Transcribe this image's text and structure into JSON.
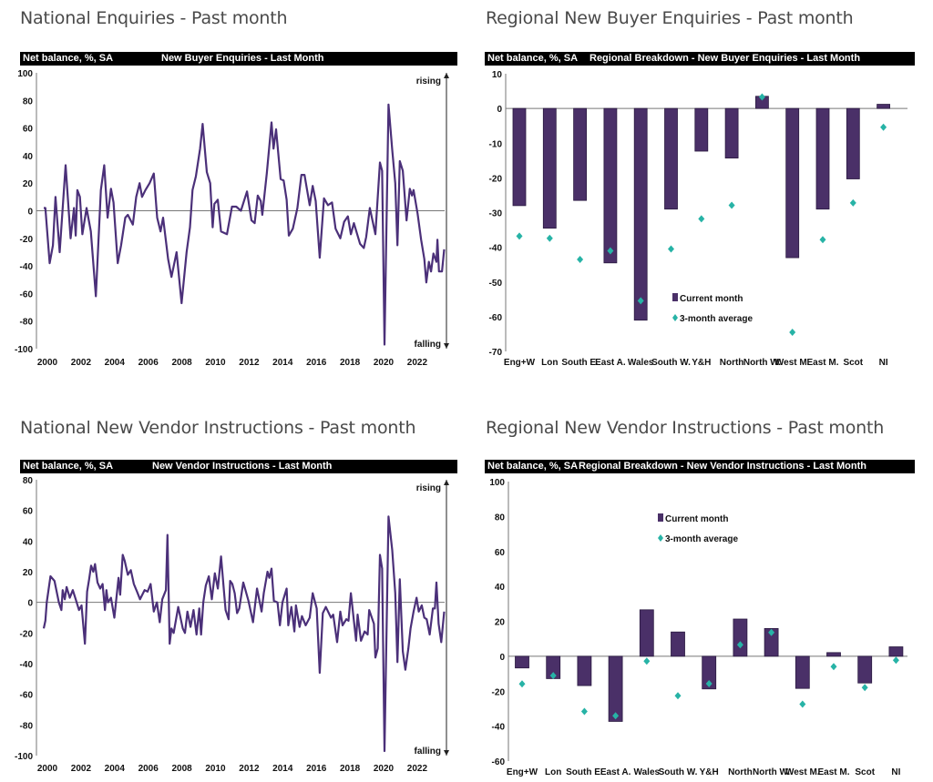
{
  "sections": {
    "national_enquiries": "National Enquiries - Past month",
    "regional_enquiries": "Regional New Buyer Enquiries - Past month",
    "national_vendors": "National New Vendor Instructions - Past month",
    "regional_vendors": "Regional New Vendor Instructions - Past month"
  },
  "colors": {
    "series": "#4b3079",
    "bar": "#4a3068",
    "marker": "#27b3a6",
    "header": "#000000"
  },
  "chart_data": [
    {
      "type": "line",
      "unit_label": "Net balance, %, SA",
      "title": "New Buyer Enquiries - Last Month",
      "ylim": [
        -100,
        100
      ],
      "yticks": [
        100,
        80,
        60,
        40,
        20,
        0,
        -20,
        -40,
        -60,
        -80,
        -100
      ],
      "xticks": [
        "2000",
        "2002",
        "2004",
        "2006",
        "2008",
        "2010",
        "2012",
        "2014",
        "2016",
        "2018",
        "2020",
        "2022"
      ],
      "annotations": {
        "top": "rising",
        "bottom": "falling"
      },
      "points": [
        [
          2000.0,
          2
        ],
        [
          2000.1,
          2
        ],
        [
          2000.35,
          -38
        ],
        [
          2000.55,
          -25
        ],
        [
          2000.7,
          10
        ],
        [
          2000.95,
          -30
        ],
        [
          2001.3,
          33
        ],
        [
          2001.6,
          -20
        ],
        [
          2001.8,
          2
        ],
        [
          2001.9,
          -18
        ],
        [
          2002.0,
          15
        ],
        [
          2002.15,
          10
        ],
        [
          2002.3,
          -17
        ],
        [
          2002.55,
          2
        ],
        [
          2002.8,
          -15
        ],
        [
          2003.1,
          -62
        ],
        [
          2003.4,
          15
        ],
        [
          2003.6,
          33
        ],
        [
          2003.8,
          -5
        ],
        [
          2004.0,
          16
        ],
        [
          2004.15,
          6
        ],
        [
          2004.4,
          -38
        ],
        [
          2004.6,
          -25
        ],
        [
          2004.85,
          -5
        ],
        [
          2005.0,
          -3
        ],
        [
          2005.3,
          -10
        ],
        [
          2005.5,
          10
        ],
        [
          2005.7,
          20
        ],
        [
          2005.85,
          10
        ],
        [
          2006.05,
          15
        ],
        [
          2006.3,
          20
        ],
        [
          2006.55,
          27
        ],
        [
          2006.75,
          -5
        ],
        [
          2006.95,
          -15
        ],
        [
          2007.1,
          -5
        ],
        [
          2007.4,
          -35
        ],
        [
          2007.6,
          -48
        ],
        [
          2007.9,
          -30
        ],
        [
          2008.2,
          -67
        ],
        [
          2008.5,
          -30
        ],
        [
          2008.7,
          -12
        ],
        [
          2008.85,
          15
        ],
        [
          2009.05,
          25
        ],
        [
          2009.3,
          45
        ],
        [
          2009.45,
          63
        ],
        [
          2009.7,
          28
        ],
        [
          2009.9,
          20
        ],
        [
          2010.05,
          -12
        ],
        [
          2010.15,
          5
        ],
        [
          2010.35,
          8
        ],
        [
          2010.55,
          -15
        ],
        [
          2010.9,
          -17
        ],
        [
          2011.2,
          3
        ],
        [
          2011.45,
          3
        ],
        [
          2011.73,
          0
        ],
        [
          2012.09,
          14
        ],
        [
          2012.36,
          -7
        ],
        [
          2012.55,
          -9
        ],
        [
          2012.73,
          11
        ],
        [
          2012.91,
          7
        ],
        [
          2013.0,
          -3
        ],
        [
          2013.27,
          27
        ],
        [
          2013.55,
          64
        ],
        [
          2013.67,
          45
        ],
        [
          2013.82,
          59
        ],
        [
          2014.09,
          23
        ],
        [
          2014.27,
          22
        ],
        [
          2014.45,
          8
        ],
        [
          2014.58,
          -18
        ],
        [
          2014.82,
          -13
        ],
        [
          2015.09,
          2
        ],
        [
          2015.33,
          26
        ],
        [
          2015.51,
          26
        ],
        [
          2015.82,
          4
        ],
        [
          2016.0,
          18
        ],
        [
          2016.18,
          7
        ],
        [
          2016.42,
          -34
        ],
        [
          2016.67,
          9
        ],
        [
          2016.91,
          4
        ],
        [
          2017.15,
          6
        ],
        [
          2017.36,
          -13
        ],
        [
          2017.64,
          -20
        ],
        [
          2017.87,
          -8
        ],
        [
          2018.09,
          -4
        ],
        [
          2018.27,
          -17
        ],
        [
          2018.45,
          -9
        ],
        [
          2018.82,
          -24
        ],
        [
          2019.04,
          -27
        ],
        [
          2019.18,
          -19
        ],
        [
          2019.4,
          2
        ],
        [
          2019.73,
          -17
        ],
        [
          2020.0,
          35
        ],
        [
          2020.13,
          29
        ],
        [
          2020.27,
          -97
        ],
        [
          2020.51,
          77
        ],
        [
          2020.73,
          44
        ],
        [
          2020.91,
          20
        ],
        [
          2021.04,
          -25
        ],
        [
          2021.18,
          36
        ],
        [
          2021.36,
          29
        ],
        [
          2021.58,
          -7
        ],
        [
          2021.78,
          16
        ],
        [
          2021.91,
          11
        ],
        [
          2022.0,
          15
        ],
        [
          2022.24,
          -2
        ],
        [
          2022.45,
          -21
        ],
        [
          2022.64,
          -35
        ],
        [
          2022.76,
          -52
        ],
        [
          2022.91,
          -37
        ],
        [
          2023.04,
          -44
        ],
        [
          2023.18,
          -31
        ],
        [
          2023.36,
          -37
        ],
        [
          2023.42,
          -21
        ],
        [
          2023.51,
          -44
        ],
        [
          2023.69,
          -44
        ],
        [
          2023.82,
          -28
        ]
      ]
    },
    {
      "type": "bar",
      "unit_label": "Net balance, %, SA",
      "title": "Regional Breakdown - New Buyer Enquiries - Last Month",
      "ylim": [
        -70,
        10
      ],
      "yticks": [
        10,
        0,
        -10,
        -20,
        -30,
        -40,
        -50,
        -60,
        -70
      ],
      "categories": [
        "Eng+W",
        "Lon",
        "South E.",
        "East A.",
        "Wales",
        "South W.",
        "Y&H",
        "North",
        "North W.",
        "West M.",
        "East M.",
        "Scot",
        "NI"
      ],
      "series": [
        {
          "name": "Current month",
          "kind": "bar",
          "values": [
            -28,
            -34.5,
            -26.5,
            -44.5,
            -61,
            -29,
            -12.3,
            -14.3,
            3.5,
            -43,
            -29,
            -20.3,
            1.2
          ]
        },
        {
          "name": "3-month average",
          "kind": "marker",
          "values": [
            -36.8,
            -37.4,
            -43.5,
            -41,
            -55.4,
            -40.5,
            -31.8,
            -27.9,
            3.3,
            -64.5,
            -37.8,
            -27.2,
            -5.4
          ]
        }
      ],
      "legend": "center-bottom"
    },
    {
      "type": "line",
      "unit_label": "Net balance, %, SA",
      "title": "New Vendor Instructions - Last Month",
      "ylim": [
        -100,
        80
      ],
      "yticks": [
        80,
        60,
        40,
        20,
        0,
        -20,
        -40,
        -60,
        -80,
        -100
      ],
      "xticks": [
        "2000",
        "2002",
        "2004",
        "2006",
        "2008",
        "2010",
        "2012",
        "2014",
        "2016",
        "2018",
        "2020",
        "2022"
      ],
      "annotations": {
        "top": "rising",
        "bottom": "falling"
      },
      "points": [
        [
          2000.0,
          -17
        ],
        [
          2000.1,
          -12
        ],
        [
          2000.18,
          0
        ],
        [
          2000.4,
          17
        ],
        [
          2000.64,
          14
        ],
        [
          2000.9,
          0
        ],
        [
          2001.05,
          -5
        ],
        [
          2001.13,
          8
        ],
        [
          2001.25,
          2
        ],
        [
          2001.36,
          10
        ],
        [
          2001.55,
          3
        ],
        [
          2001.73,
          8
        ],
        [
          2001.9,
          2
        ],
        [
          2002.1,
          -5
        ],
        [
          2002.25,
          -2
        ],
        [
          2002.45,
          -27
        ],
        [
          2002.58,
          7
        ],
        [
          2002.7,
          15
        ],
        [
          2002.82,
          24
        ],
        [
          2002.95,
          20
        ],
        [
          2003.05,
          25
        ],
        [
          2003.2,
          13
        ],
        [
          2003.36,
          9
        ],
        [
          2003.5,
          12
        ],
        [
          2003.64,
          -5
        ],
        [
          2003.73,
          8
        ],
        [
          2003.82,
          0
        ],
        [
          2004.0,
          3
        ],
        [
          2004.2,
          -10
        ],
        [
          2004.45,
          16
        ],
        [
          2004.55,
          5
        ],
        [
          2004.7,
          31
        ],
        [
          2004.82,
          27
        ],
        [
          2005.0,
          18
        ],
        [
          2005.18,
          21
        ],
        [
          2005.36,
          12
        ],
        [
          2005.55,
          7
        ],
        [
          2005.73,
          2
        ],
        [
          2006.0,
          8
        ],
        [
          2006.18,
          7
        ],
        [
          2006.36,
          12
        ],
        [
          2006.55,
          -6
        ],
        [
          2006.73,
          0
        ],
        [
          2006.9,
          -13
        ],
        [
          2007.05,
          2
        ],
        [
          2007.27,
          8
        ],
        [
          2007.36,
          44
        ],
        [
          2007.49,
          -27
        ],
        [
          2007.6,
          -17
        ],
        [
          2007.73,
          -20
        ],
        [
          2008.0,
          -3
        ],
        [
          2008.27,
          -17
        ],
        [
          2008.4,
          -20
        ],
        [
          2008.55,
          -6
        ],
        [
          2008.73,
          -16
        ],
        [
          2008.91,
          -5
        ],
        [
          2009.09,
          -21
        ],
        [
          2009.25,
          -4
        ],
        [
          2009.36,
          -21
        ],
        [
          2009.49,
          0
        ],
        [
          2009.64,
          11
        ],
        [
          2009.82,
          17
        ],
        [
          2010.0,
          2
        ],
        [
          2010.18,
          19
        ],
        [
          2010.36,
          9
        ],
        [
          2010.55,
          30
        ],
        [
          2010.73,
          6
        ],
        [
          2010.82,
          -5
        ],
        [
          2011.0,
          -11
        ],
        [
          2011.09,
          14
        ],
        [
          2011.22,
          12
        ],
        [
          2011.36,
          6
        ],
        [
          2011.5,
          -7
        ],
        [
          2011.63,
          -4
        ],
        [
          2011.87,
          13
        ],
        [
          2012.0,
          8
        ],
        [
          2012.18,
          1
        ],
        [
          2012.45,
          -13
        ],
        [
          2012.69,
          9
        ],
        [
          2012.96,
          -6
        ],
        [
          2013.09,
          6
        ],
        [
          2013.31,
          20
        ],
        [
          2013.42,
          16
        ],
        [
          2013.55,
          22
        ],
        [
          2013.69,
          1
        ],
        [
          2013.91,
          0
        ],
        [
          2014.05,
          -15
        ],
        [
          2014.2,
          0
        ],
        [
          2014.45,
          9
        ],
        [
          2014.55,
          -15
        ],
        [
          2014.73,
          -3
        ],
        [
          2014.91,
          -19
        ],
        [
          2015.0,
          -2
        ],
        [
          2015.22,
          -16
        ],
        [
          2015.36,
          -9
        ],
        [
          2015.58,
          -15
        ],
        [
          2015.82,
          -10
        ],
        [
          2016.0,
          6
        ],
        [
          2016.24,
          -4
        ],
        [
          2016.42,
          -46
        ],
        [
          2016.6,
          -7
        ],
        [
          2016.78,
          -3
        ],
        [
          2017.09,
          -10
        ],
        [
          2017.22,
          -8
        ],
        [
          2017.45,
          -26
        ],
        [
          2017.64,
          -6
        ],
        [
          2017.78,
          -15
        ],
        [
          2018.0,
          -11
        ],
        [
          2018.13,
          -12
        ],
        [
          2018.27,
          6
        ],
        [
          2018.58,
          -25
        ],
        [
          2018.67,
          -8
        ],
        [
          2018.87,
          -25
        ],
        [
          2019.09,
          -19
        ],
        [
          2019.27,
          -21
        ],
        [
          2019.36,
          -5
        ],
        [
          2019.64,
          -14
        ],
        [
          2019.73,
          -36
        ],
        [
          2019.87,
          -30
        ],
        [
          2020.0,
          31
        ],
        [
          2020.13,
          22
        ],
        [
          2020.27,
          -97
        ],
        [
          2020.51,
          56
        ],
        [
          2020.73,
          34
        ],
        [
          2020.91,
          6
        ],
        [
          2021.04,
          -39
        ],
        [
          2021.18,
          15
        ],
        [
          2021.36,
          -32
        ],
        [
          2021.51,
          -44
        ],
        [
          2021.69,
          -30
        ],
        [
          2021.82,
          -17
        ],
        [
          2022.0,
          -6
        ],
        [
          2022.18,
          3
        ],
        [
          2022.31,
          -6
        ],
        [
          2022.49,
          -2
        ],
        [
          2022.64,
          -10
        ],
        [
          2022.78,
          -11
        ],
        [
          2022.96,
          -21
        ],
        [
          2023.15,
          -4
        ],
        [
          2023.27,
          -4
        ],
        [
          2023.36,
          13
        ],
        [
          2023.49,
          -14
        ],
        [
          2023.65,
          -26
        ],
        [
          2023.82,
          -6
        ]
      ]
    },
    {
      "type": "bar",
      "unit_label": "Net balance, %, SA",
      "title": "Regional Breakdown - New Vendor Instructions - Last Month",
      "ylim": [
        -60,
        100
      ],
      "yticks": [
        100,
        80,
        60,
        40,
        20,
        0,
        -20,
        -40,
        -60
      ],
      "categories": [
        "Eng+W",
        "Lon",
        "South E.",
        "East A.",
        "Wales",
        "South W.",
        "Y&H",
        "North",
        "North W.",
        "West M.",
        "East M.",
        "Scot",
        "NI"
      ],
      "series": [
        {
          "name": "Current month",
          "kind": "bar",
          "values": [
            -6.7,
            -12.8,
            -16.8,
            -37.3,
            26.6,
            13.9,
            -18.7,
            21.3,
            15.9,
            -18.4,
            2.1,
            -15.3,
            5.4
          ]
        },
        {
          "name": "3-month average",
          "kind": "marker",
          "values": [
            -15.8,
            -11.1,
            -31.6,
            -34.1,
            -2.8,
            -22.6,
            -15.7,
            6.6,
            13.6,
            -27.4,
            -5.9,
            -17.9,
            -2.3
          ]
        }
      ],
      "legend": "top-center"
    }
  ]
}
